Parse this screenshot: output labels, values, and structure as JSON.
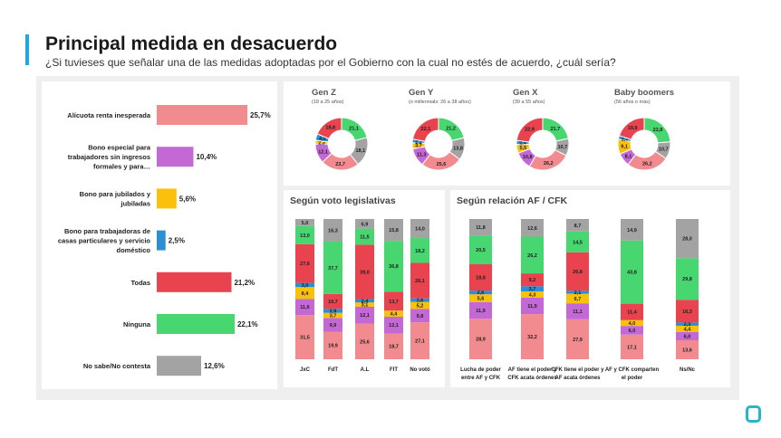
{
  "header": {
    "title": "Principal medida en desacuerdo",
    "subtitle": "¿Si tuvieses que señalar una de las medidas adoptadas por el Gobierno con la cual no estés de acuerdo, ¿cuál sería?"
  },
  "colors": {
    "alicuota": "#f28b8f",
    "bono_especial": "#c368d4",
    "bono_jubilados": "#f9c10a",
    "bono_trabajadoras": "#2a8fd4",
    "todas": "#e8434f",
    "ninguna": "#47d66f",
    "nsnc": "#a3a3a3"
  },
  "chart_data": [
    {
      "type": "bar",
      "orientation": "horizontal",
      "categories": [
        "Alícuota renta inesperada",
        "Bono especial para trabajadores sin ingresos formales y para…",
        "Bono para jubilados y jubiladas",
        "Bono para trabajadoras de casas particulares y servicio doméstico",
        "Todas",
        "Ninguna",
        "No sabe/No contesta"
      ],
      "category_lines": [
        [
          "Alícuota renta inesperada"
        ],
        [
          "Bono especial para",
          "trabajadores sin ingresos",
          "formales y para…"
        ],
        [
          "Bono para jubilados y",
          "jubiladas"
        ],
        [
          "Bono para trabajadoras de",
          "casas particulares y servicio",
          "doméstico"
        ],
        [
          "Todas"
        ],
        [
          "Ninguna"
        ],
        [
          "No sabe/No contesta"
        ]
      ],
      "values": [
        25.7,
        10.4,
        5.6,
        2.5,
        21.2,
        22.1,
        12.6
      ],
      "value_labels": [
        "25,7%",
        "10,4%",
        "5,6%",
        "2,5%",
        "21,2%",
        "22,1%",
        "12,6%"
      ]
    },
    {
      "type": "pie",
      "style": "donut",
      "segment_order": [
        "ninguna",
        "nsnc",
        "alicuota",
        "bono_especial",
        "bono_jubilados",
        "bono_trabajadoras",
        "todas"
      ],
      "charts": [
        {
          "name": "Gen Z",
          "note": "(18 a 25 años)",
          "values": [
            21.1,
            18.1,
            23.7,
            12.1,
            2.3,
            4.0,
            18.8
          ],
          "labels": [
            "21,1",
            "18,1",
            "23,7",
            "12,1",
            "2,3",
            "4,0",
            "18,8"
          ]
        },
        {
          "name": "Gen Y",
          "note": "(o millennials: 26 a 38 años)",
          "values": [
            21.2,
            13.8,
            25.6,
            11.3,
            3.7,
            2.2,
            22.1
          ],
          "labels": [
            "21,2",
            "13,8",
            "25,6",
            "11,3",
            "3,7",
            "2,2",
            "22,1"
          ]
        },
        {
          "name": "Gen X",
          "note": "(39 a 55 años)",
          "values": [
            21.7,
            10.7,
            26.2,
            10.8,
            5.5,
            2.4,
            22.9
          ],
          "labels": [
            "21,7",
            "10,7",
            "26,2",
            "10,8",
            "5,5",
            "2,4",
            "22,9"
          ]
        },
        {
          "name": "Baby boomers",
          "note": "(56 años o más)",
          "values": [
            23.8,
            10.7,
            26.2,
            8.1,
            9.1,
            2.3,
            19.9
          ],
          "labels": [
            "23,8",
            "10,7",
            "26,2",
            "8,1",
            "9,1",
            "2,3",
            "19,9"
          ]
        }
      ]
    },
    {
      "type": "bar",
      "stacked": true,
      "title": "Según voto legislativas",
      "categories": [
        "JxC",
        "FdT",
        "A.L",
        "FIT",
        "No votó"
      ],
      "stack_order_bottom_to_top": [
        "alicuota",
        "bono_especial",
        "bono_jubilados",
        "bono_trabajadoras",
        "todas",
        "ninguna",
        "nsnc"
      ],
      "series": [
        {
          "key": "alicuota",
          "values": [
            31.5,
            19.9,
            25.6,
            18.7,
            27.1
          ],
          "labels": [
            "31,5",
            "19,9",
            "25,6",
            "18,7",
            "27,1"
          ]
        },
        {
          "key": "bono_especial",
          "values": [
            11.6,
            9.9,
            12.1,
            12.1,
            9.8
          ],
          "labels": [
            "11,6",
            "9,9",
            "12,1",
            "12,1",
            "9,8"
          ]
        },
        {
          "key": "bono_jubilados",
          "values": [
            8.4,
            3.7,
            3.1,
            4.4,
            5.2
          ],
          "labels": [
            "8,4",
            "3,7",
            "3,1",
            "4,4",
            "5,2"
          ]
        },
        {
          "key": "bono_trabajadoras",
          "values": [
            3.0,
            2.9,
            2.4,
            0,
            2.6
          ],
          "labels": [
            "3,0",
            "2,9",
            "2,4",
            "",
            "2,6"
          ]
        },
        {
          "key": "todas",
          "values": [
            27.6,
            10.7,
            39.0,
            13.7,
            26.1
          ],
          "labels": [
            "27,6",
            "10,7",
            "39,0",
            "13,7",
            "26,1"
          ]
        },
        {
          "key": "ninguna",
          "values": [
            13.0,
            37.7,
            11.5,
            36.8,
            18.2
          ],
          "labels": [
            "13,0",
            "37,7",
            "11,5",
            "36,8",
            "18,2"
          ]
        },
        {
          "key": "nsnc",
          "values": [
            5.0,
            16.3,
            6.9,
            15.8,
            14.0
          ],
          "labels": [
            "5,0",
            "16,3",
            "6,9",
            "15,8",
            "14,0"
          ]
        }
      ]
    },
    {
      "type": "bar",
      "stacked": true,
      "title": "Según relación AF / CFK",
      "categories": [
        "Lucha de poder entre AF y CFK",
        "AF tiene el poder y CFK acata órdenes",
        "CFK tiene el poder y AF acata órdenes",
        "AF y CFK comparten el poder",
        "Ns/Nc"
      ],
      "category_lines": [
        [
          "Lucha de poder",
          "entre AF y CFK"
        ],
        [
          "AF tiene el poder y",
          "CFK acata órdenes"
        ],
        [
          "CFK tiene el poder y",
          "AF acata órdenes"
        ],
        [
          "AF y CFK comparten",
          "el poder"
        ],
        [
          "Ns/Nc"
        ]
      ],
      "stack_order_bottom_to_top": [
        "alicuota",
        "bono_especial",
        "bono_jubilados",
        "bono_trabajadoras",
        "todas",
        "ninguna",
        "nsnc"
      ],
      "series": [
        {
          "key": "alicuota",
          "values": [
            28.9,
            32.2,
            27.9,
            17.1,
            13.6
          ],
          "labels": [
            "28,9",
            "32,2",
            "27,9",
            "17,1",
            "13,6"
          ]
        },
        {
          "key": "bono_especial",
          "values": [
            11.9,
            11.9,
            11.1,
            6.0,
            6.0
          ],
          "labels": [
            "11,9",
            "11,9",
            "11,1",
            "6,0",
            "6,0"
          ]
        },
        {
          "key": "bono_jubilados",
          "values": [
            5.6,
            4.3,
            6.7,
            4.0,
            4.4
          ],
          "labels": [
            "5,6",
            "4,3",
            "6,7",
            "4,0",
            "4,4"
          ]
        },
        {
          "key": "bono_trabajadoras",
          "values": [
            2.6,
            3.7,
            2.1,
            0,
            2.3
          ],
          "labels": [
            "2,6",
            "3,7",
            "2,1",
            "",
            "2,3"
          ]
        },
        {
          "key": "todas",
          "values": [
            18.8,
            9.2,
            26.8,
            11.4,
            16.3
          ],
          "labels": [
            "18,8",
            "9,2",
            "26,8",
            "11,4",
            "16,3"
          ]
        },
        {
          "key": "ninguna",
          "values": [
            20.5,
            26.2,
            14.5,
            43.8,
            29.8
          ],
          "labels": [
            "20,5",
            "26,2",
            "14,5",
            "43,8",
            "29,8"
          ]
        },
        {
          "key": "nsnc",
          "values": [
            11.8,
            12.6,
            8.7,
            14.9,
            28.0
          ],
          "labels": [
            "11,8",
            "12,6",
            "8,7",
            "14,9",
            "28,0"
          ]
        }
      ]
    }
  ]
}
